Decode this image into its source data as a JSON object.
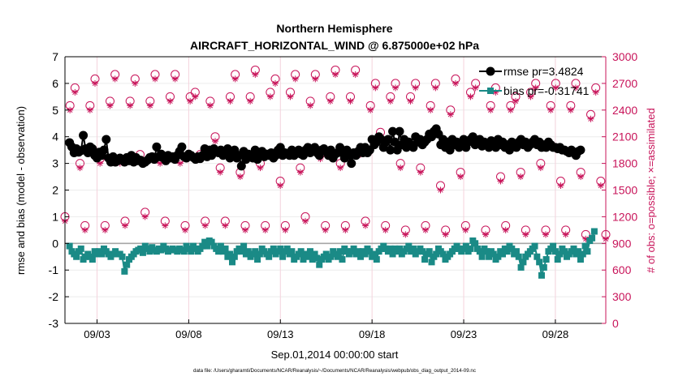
{
  "chart_data": {
    "type": "line",
    "title": "Northern Hemisphere",
    "subtitle": "AIRCRAFT_HORIZONTAL_WIND @ 6.875000e+02 hPa",
    "xlabel": "Sep.01,2014 00:00:00 start",
    "ylabel_left": "rmse and bias (model - observation)",
    "ylabel_right": "# of obs: o=possible; ×=assimilated",
    "footnote": "data file: /Users/gharamti/Documents/NCAR/Reanalysis/~/Documents/NCAR/Reanalysis/webpub/obs_diag_output_2014-09.nc",
    "x_tick_labels": [
      "09/03",
      "09/08",
      "09/13",
      "09/18",
      "09/23",
      "09/28"
    ],
    "x_tick_days": [
      3,
      8,
      13,
      18,
      23,
      28
    ],
    "xlim": [
      1.25,
      30.75
    ],
    "ylim_left": [
      -3,
      7
    ],
    "yticks_left": [
      "-3",
      "-2",
      "-1",
      "0",
      "1",
      "2",
      "3",
      "4",
      "5",
      "6",
      "7"
    ],
    "ylim_right": [
      0,
      3000
    ],
    "yticks_right": [
      "0",
      "300",
      "600",
      "900",
      "1200",
      "1500",
      "1800",
      "2100",
      "2400",
      "2700",
      "3000"
    ],
    "grid": true,
    "legend_position": "top-right",
    "colors": {
      "rmse": "#000000",
      "bias": "#1a8a86",
      "obs": "#c8145a",
      "zero_line": "#a6a6a6",
      "grid": "#ececec",
      "grid_x": "#f4d2dc"
    },
    "time_step_days": 0.125,
    "start_day": 1.5,
    "series": [
      {
        "name": "rmse",
        "legend": "rmse pr=3.4824",
        "values": [
          3.78,
          3.62,
          3.4,
          3.55,
          3.42,
          3.48,
          4.05,
          3.55,
          3.4,
          3.62,
          3.55,
          3.3,
          3.2,
          3.42,
          3.3,
          3.5,
          3.9,
          3.2,
          3.05,
          3.25,
          3.05,
          3.1,
          3.2,
          3.15,
          3.05,
          3.22,
          3.1,
          3.3,
          3.05,
          3.22,
          3.1,
          3.12,
          3.0,
          3.05,
          3.12,
          3.22,
          3.25,
          3.15,
          3.62,
          3.25,
          3.35,
          3.2,
          3.1,
          3.3,
          3.2,
          3.25,
          3.15,
          3.3,
          3.45,
          3.62,
          3.25,
          3.2,
          3.35,
          3.3,
          3.22,
          3.15,
          3.25,
          3.18,
          3.3,
          3.55,
          3.25,
          3.5,
          3.3,
          3.55,
          3.45,
          3.4,
          3.5,
          3.3,
          3.4,
          3.55,
          3.2,
          3.35,
          3.5,
          3.2,
          3.3,
          2.9,
          3.45,
          3.15,
          3.35,
          3.25,
          3.2,
          3.5,
          3.15,
          3.35,
          3.45,
          3.25,
          3.35,
          3.3,
          3.4,
          3.2,
          3.3,
          3.5,
          3.6,
          3.3,
          3.4,
          3.35,
          3.3,
          3.5,
          3.3,
          3.4,
          3.5,
          3.35,
          3.3,
          3.5,
          3.6,
          3.4,
          3.55,
          3.6,
          3.4,
          3.3,
          3.5,
          3.55,
          3.45,
          3.3,
          3.5,
          3.2,
          3.35,
          3.4,
          3.6,
          3.4,
          3.2,
          3.5,
          3.3,
          3.0,
          3.4,
          3.3,
          3.45,
          3.6,
          3.4,
          3.6,
          3.4,
          3.5,
          3.9,
          3.7,
          3.8,
          4.0,
          3.9,
          3.6,
          3.8,
          3.9,
          3.5,
          4.2,
          3.8,
          3.5,
          4.2,
          3.7,
          3.9,
          3.6,
          3.8,
          3.7,
          3.6,
          4.0,
          3.8,
          3.9,
          3.7,
          3.8,
          3.9,
          4.1,
          4.0,
          4.2,
          4.3,
          4.1,
          3.7,
          3.9,
          3.6,
          3.8,
          3.5,
          3.9,
          3.7,
          3.8,
          3.6,
          3.75,
          3.9,
          3.6,
          3.8,
          3.9,
          4.0,
          3.7,
          3.8,
          3.9,
          3.65,
          3.8,
          3.7,
          3.6,
          3.85,
          3.7,
          3.6,
          3.9,
          3.7,
          3.8,
          3.6,
          3.7,
          3.5,
          3.8,
          3.7,
          3.6,
          3.8,
          3.9,
          3.7,
          3.8,
          3.6,
          3.7,
          3.8,
          3.9,
          3.7,
          3.8,
          3.6,
          3.7,
          3.6,
          3.8,
          3.7,
          3.6,
          3.6,
          3.55,
          3.6,
          3.5,
          3.5,
          3.45,
          3.4,
          3.5,
          3.4,
          3.3,
          3.45,
          3.5
        ]
      },
      {
        "name": "bias",
        "legend": "bias pr=-0.31741",
        "values": [
          -0.1,
          -0.3,
          -0.4,
          -0.5,
          -0.3,
          -0.2,
          -0.6,
          -0.5,
          -0.4,
          -0.5,
          -0.6,
          -0.3,
          -0.4,
          -0.3,
          -0.4,
          -0.2,
          -0.3,
          -0.4,
          -0.5,
          -0.4,
          -0.3,
          -0.4,
          -0.4,
          -0.5,
          -1.05,
          -0.8,
          -0.6,
          -0.5,
          -0.4,
          -0.3,
          -0.25,
          -0.2,
          -0.35,
          -0.1,
          -0.2,
          -0.3,
          -0.15,
          -0.25,
          -0.3,
          -0.2,
          -0.25,
          -0.1,
          -0.2,
          -0.3,
          -0.25,
          -0.2,
          -0.25,
          -0.3,
          -0.2,
          -0.25,
          -0.3,
          -0.1,
          -0.2,
          -0.3,
          -0.1,
          -0.2,
          -0.3,
          -0.2,
          -0.1,
          0.05,
          -0.1,
          0.1,
          0.05,
          -0.1,
          -0.2,
          -0.3,
          -0.1,
          -0.3,
          -0.2,
          -0.5,
          -0.4,
          -0.7,
          -0.5,
          -0.3,
          -0.2,
          -0.3,
          -0.1,
          -0.4,
          -0.3,
          -0.5,
          -0.4,
          -0.3,
          -0.6,
          -0.4,
          -0.2,
          -0.3,
          -0.4,
          -0.5,
          -0.3,
          -0.2,
          -0.4,
          -0.3,
          -0.2,
          -0.5,
          -0.3,
          -0.2,
          -0.4,
          -0.3,
          -0.6,
          -0.5,
          -0.4,
          -0.3,
          -0.6,
          -0.4,
          -0.5,
          -0.3,
          -0.6,
          -0.4,
          -0.55,
          -0.8,
          -0.6,
          -0.5,
          -0.4,
          -0.6,
          -0.5,
          -0.3,
          -0.4,
          -0.5,
          -0.3,
          -0.6,
          -0.2,
          -0.3,
          -0.4,
          -0.3,
          -0.2,
          -0.4,
          -0.3,
          -0.5,
          -0.3,
          -0.4,
          -0.2,
          -0.3,
          -0.5,
          -0.4,
          -0.6,
          -0.3,
          -0.2,
          -0.1,
          -0.2,
          -0.3,
          -0.2,
          -0.4,
          -0.2,
          -0.3,
          -0.2,
          -0.4,
          -0.3,
          -0.2,
          -0.1,
          -0.3,
          -0.2,
          -0.4,
          -0.3,
          -0.2,
          -0.3,
          -0.6,
          -0.4,
          -0.3,
          -0.7,
          -0.5,
          -0.4,
          -0.2,
          -0.3,
          -0.4,
          -0.6,
          -0.5,
          -0.4,
          -0.3,
          -0.2,
          -0.1,
          -0.2,
          -0.3,
          -0.2,
          -0.1,
          -0.3,
          -0.2,
          0.1,
          0.0,
          -0.2,
          -0.3,
          -0.5,
          -0.2,
          -0.3,
          -0.5,
          -0.3,
          -0.4,
          -0.6,
          -0.5,
          -0.3,
          -0.4,
          -0.2,
          -0.3,
          -0.1,
          -0.2,
          -0.4,
          -0.3,
          -0.5,
          -0.9,
          -0.7,
          -0.5,
          -0.4,
          -0.3,
          -0.2,
          -0.1,
          -0.5,
          -0.7,
          -1.2,
          -0.9,
          -0.6,
          -0.3,
          -0.2,
          -0.1,
          -0.3,
          -0.6,
          -0.4,
          -0.2,
          -0.3,
          -0.5,
          -0.4,
          -0.3,
          -0.2,
          -0.4,
          -0.3,
          -0.6,
          -0.4,
          -0.1,
          -0.3,
          0.1,
          0.2,
          0.45
        ]
      },
      {
        "name": "obs_possible",
        "legend": "",
        "marker": "circle",
        "values": [
          1200,
          2450,
          2650,
          1800,
          1100,
          2450,
          2750,
          1850,
          1100,
          2500,
          2800,
          1850,
          1150,
          2500,
          2750,
          1900,
          1250,
          2500,
          2800,
          1850,
          1150,
          2550,
          2800,
          1850,
          1100,
          2550,
          2600,
          1900,
          1150,
          2500,
          2100,
          1750,
          1150,
          2550,
          2800,
          1700,
          1100,
          2550,
          2850,
          1800,
          1100,
          2600,
          2750,
          1600,
          1100,
          2600,
          2800,
          1750,
          1200,
          2500,
          2800,
          1900,
          1100,
          2550,
          2850,
          1800,
          1100,
          2550,
          2850,
          1950,
          1150,
          2450,
          2700,
          2150,
          1100,
          2550,
          2700,
          1800,
          1050,
          2550,
          2700,
          1750,
          1100,
          2450,
          2700,
          1550,
          1050,
          2400,
          2750,
          1700,
          1100,
          2600,
          2700,
          2050,
          1050,
          2450,
          2650,
          1650,
          1100,
          2450,
          2550,
          1700,
          1050,
          2600,
          2700,
          1800,
          1050,
          2450,
          2700,
          1600,
          1050,
          2450,
          2700,
          1700,
          1000,
          2350,
          2650,
          1600,
          1000
        ]
      },
      {
        "name": "obs_assimilated",
        "legend": "",
        "marker": "x",
        "values": [
          1150,
          2400,
          2600,
          1750,
          1050,
          2400,
          2700,
          1800,
          1050,
          2450,
          2750,
          1800,
          1100,
          2450,
          2700,
          1850,
          1200,
          2450,
          2750,
          1800,
          1100,
          2500,
          2750,
          1800,
          1050,
          2500,
          2550,
          1850,
          1100,
          2450,
          2050,
          1700,
          1100,
          2500,
          2750,
          1650,
          1050,
          2500,
          2800,
          1750,
          1050,
          2550,
          2700,
          1550,
          1050,
          2550,
          2750,
          1700,
          1150,
          2450,
          2750,
          1850,
          1050,
          2500,
          2800,
          1750,
          1050,
          2500,
          2800,
          1900,
          1100,
          2400,
          2650,
          2100,
          1050,
          2500,
          2650,
          1750,
          1000,
          2500,
          2650,
          1700,
          1050,
          2400,
          2650,
          1500,
          1000,
          2350,
          2700,
          1650,
          1050,
          2550,
          2650,
          2000,
          1000,
          2400,
          2600,
          1600,
          1050,
          2400,
          2500,
          1650,
          1000,
          2550,
          2650,
          1750,
          1000,
          2400,
          2650,
          1550,
          1000,
          2400,
          2650,
          1650,
          950,
          2300,
          2600,
          1550,
          950
        ]
      }
    ]
  }
}
